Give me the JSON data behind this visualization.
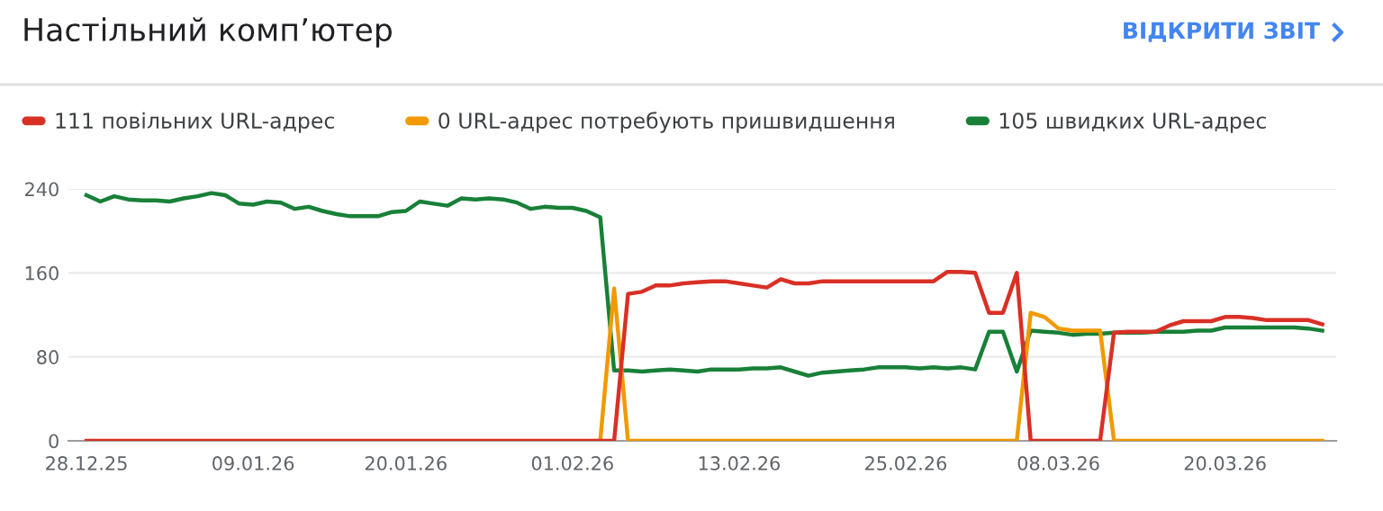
{
  "chart_data": {
    "type": "line",
    "title": "Настільний комп’ютер",
    "annotations": [
      "ВІДКРИТИ ЗВІТ"
    ],
    "categories": [
      "28.12.25",
      null,
      null,
      null,
      null,
      null,
      null,
      null,
      null,
      null,
      null,
      null,
      "09.01.26",
      null,
      null,
      null,
      null,
      null,
      null,
      null,
      null,
      null,
      null,
      "20.01.26",
      null,
      null,
      null,
      null,
      null,
      null,
      null,
      null,
      null,
      null,
      null,
      "01.02.26",
      null,
      null,
      null,
      null,
      null,
      null,
      null,
      null,
      null,
      null,
      null,
      "13.02.26",
      null,
      null,
      null,
      null,
      null,
      null,
      null,
      null,
      null,
      null,
      null,
      "25.02.26",
      null,
      null,
      null,
      null,
      null,
      null,
      null,
      null,
      null,
      null,
      "08.03.26",
      null,
      null,
      null,
      null,
      null,
      null,
      null,
      null,
      null,
      null,
      null,
      "20.03.26",
      null,
      null,
      null,
      null,
      null,
      null,
      null
    ],
    "series": [
      {
        "name": "111 повільних URL-адрес",
        "color": "#d93025",
        "values": [
          0,
          0,
          0,
          0,
          0,
          0,
          0,
          0,
          0,
          0,
          0,
          0,
          0,
          0,
          0,
          0,
          0,
          0,
          0,
          0,
          0,
          0,
          0,
          0,
          0,
          0,
          0,
          0,
          0,
          0,
          0,
          0,
          0,
          0,
          0,
          0,
          0,
          0,
          0,
          140,
          142,
          148,
          148,
          150,
          151,
          152,
          152,
          150,
          148,
          146,
          154,
          150,
          150,
          152,
          152,
          152,
          152,
          152,
          152,
          152,
          152,
          152,
          161,
          161,
          160,
          122,
          122,
          160,
          0,
          0,
          0,
          0,
          0,
          0,
          103,
          104,
          104,
          104,
          110,
          114,
          114,
          114,
          118,
          118,
          117,
          115,
          115,
          115,
          115,
          111
        ]
      },
      {
        "name": "0 URL-адрес потребують пришвидшення",
        "color": "#f29900",
        "values": [
          null,
          null,
          null,
          null,
          null,
          null,
          null,
          null,
          null,
          null,
          null,
          null,
          null,
          null,
          null,
          null,
          null,
          null,
          null,
          null,
          null,
          null,
          null,
          null,
          null,
          null,
          null,
          null,
          null,
          null,
          null,
          null,
          null,
          null,
          null,
          null,
          null,
          0,
          145,
          0,
          0,
          0,
          0,
          0,
          0,
          0,
          0,
          0,
          0,
          0,
          0,
          0,
          0,
          0,
          0,
          0,
          0,
          0,
          0,
          0,
          0,
          0,
          0,
          0,
          0,
          0,
          0,
          0,
          122,
          118,
          107,
          105,
          105,
          105,
          0,
          0,
          0,
          0,
          0,
          0,
          0,
          0,
          0,
          0,
          0,
          0,
          0,
          0,
          0,
          0
        ]
      },
      {
        "name": "105 швидких URL-адрес",
        "color": "#188038",
        "values": [
          234,
          228,
          233,
          230,
          229,
          229,
          228,
          231,
          233,
          236,
          234,
          226,
          225,
          228,
          227,
          221,
          223,
          219,
          216,
          214,
          214,
          214,
          218,
          219,
          228,
          226,
          224,
          231,
          230,
          231,
          230,
          227,
          221,
          223,
          222,
          222,
          219,
          213,
          67,
          67,
          66,
          67,
          68,
          67,
          66,
          68,
          68,
          68,
          69,
          69,
          70,
          66,
          62,
          65,
          66,
          67,
          68,
          70,
          70,
          70,
          69,
          70,
          69,
          70,
          68,
          104,
          104,
          66,
          105,
          104,
          103,
          101,
          102,
          102,
          103,
          103,
          103,
          104,
          104,
          104,
          105,
          105,
          108,
          108,
          108,
          108,
          108,
          108,
          107,
          105
        ]
      }
    ],
    "ylim": [
      0,
      240
    ],
    "yticks": [
      0,
      80,
      160,
      240
    ],
    "grid": "y",
    "legend": "top left",
    "line_style": "solid"
  }
}
